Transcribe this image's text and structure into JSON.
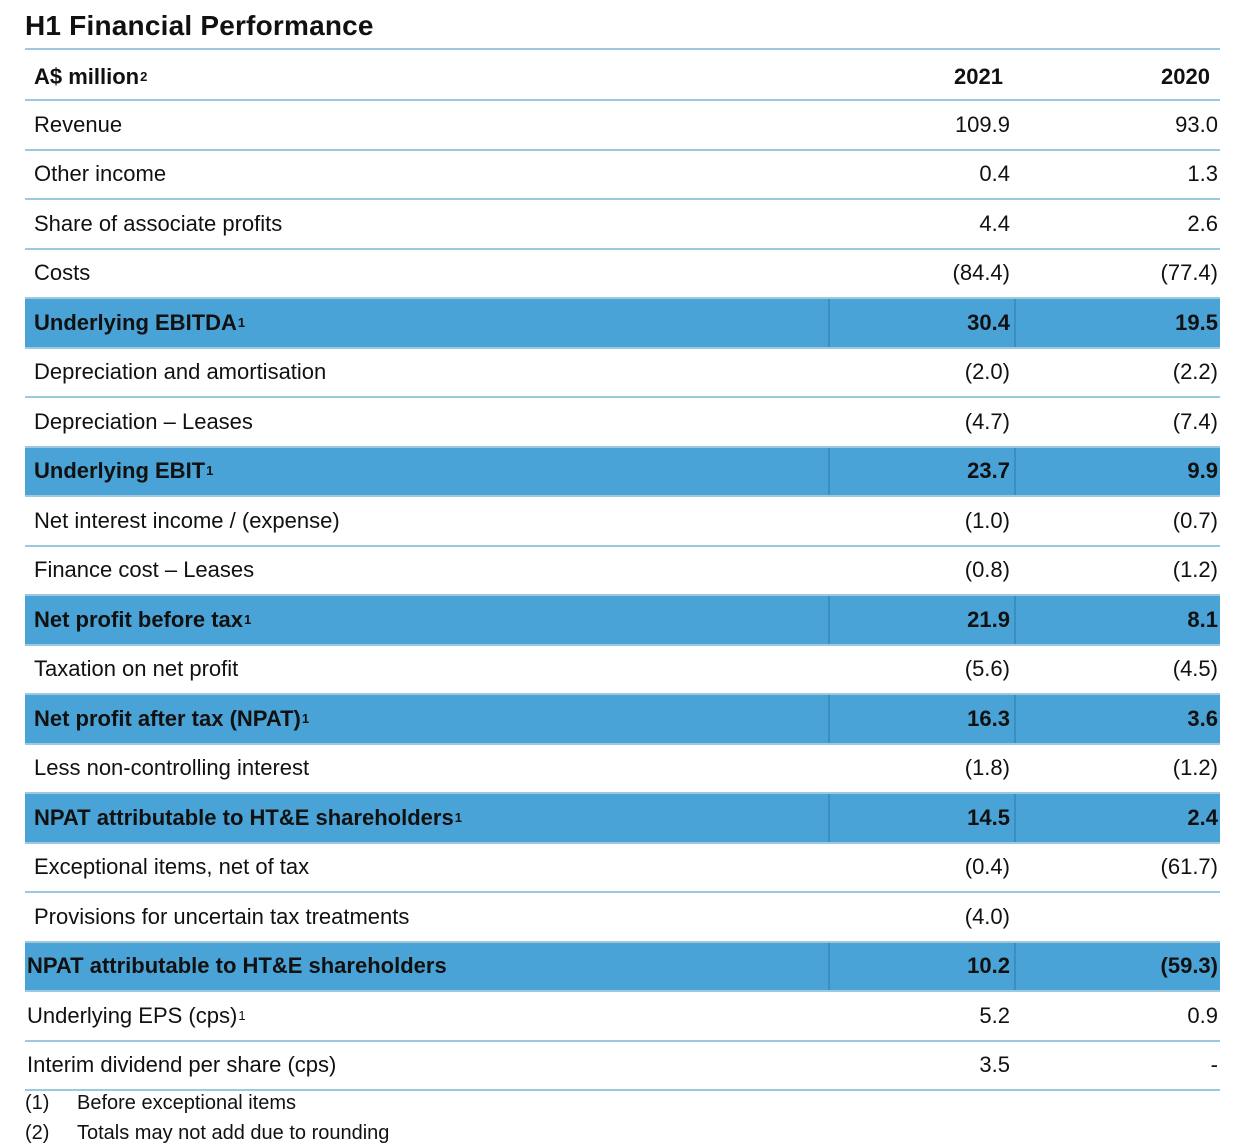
{
  "title": "H1 Financial Performance",
  "table": {
    "header": {
      "label": "A$ million",
      "label_sup": "2",
      "col_2021": "2021",
      "col_2020": "2020"
    },
    "rows": [
      {
        "label": "Revenue",
        "sup": "",
        "v2021": "109.9",
        "v2020": "93.0",
        "highlight": false
      },
      {
        "label": "Other income",
        "sup": "",
        "v2021": "0.4",
        "v2020": "1.3",
        "highlight": false
      },
      {
        "label": "Share of associate profits",
        "sup": "",
        "v2021": "4.4",
        "v2020": "2.6",
        "highlight": false
      },
      {
        "label": "Costs",
        "sup": "",
        "v2021": "(84.4)",
        "v2020": "(77.4)",
        "highlight": false
      },
      {
        "label": "Underlying EBITDA",
        "sup": "1",
        "v2021": "30.4",
        "v2020": "19.5",
        "highlight": true
      },
      {
        "label": "Depreciation and amortisation",
        "sup": "",
        "v2021": "(2.0)",
        "v2020": "(2.2)",
        "highlight": false
      },
      {
        "label": "Depreciation – Leases",
        "sup": "",
        "v2021": "(4.7)",
        "v2020": "(7.4)",
        "highlight": false
      },
      {
        "label": "Underlying EBIT",
        "sup": "1",
        "v2021": "23.7",
        "v2020": "9.9",
        "highlight": true
      },
      {
        "label": "Net interest income / (expense)",
        "sup": "",
        "v2021": "(1.0)",
        "v2020": "(0.7)",
        "highlight": false
      },
      {
        "label": "Finance cost – Leases",
        "sup": "",
        "v2021": "(0.8)",
        "v2020": "(1.2)",
        "highlight": false
      },
      {
        "label": "Net profit before tax",
        "sup": "1",
        "v2021": "21.9",
        "v2020": "8.1",
        "highlight": true
      },
      {
        "label": "Taxation on net profit",
        "sup": "",
        "v2021": "(5.6)",
        "v2020": "(4.5)",
        "highlight": false
      },
      {
        "label": "Net profit after tax (NPAT)",
        "sup": "1",
        "v2021": "16.3",
        "v2020": "3.6",
        "highlight": true
      },
      {
        "label": "Less non-controlling interest",
        "sup": "",
        "v2021": "(1.8)",
        "v2020": "(1.2)",
        "highlight": false
      },
      {
        "label": "NPAT attributable to HT&E shareholders",
        "sup": "1",
        "v2021": "14.5",
        "v2020": "2.4",
        "highlight": true
      },
      {
        "label": "Exceptional items, net of tax",
        "sup": "",
        "v2021": "(0.4)",
        "v2020": "(61.7)",
        "highlight": false
      },
      {
        "label": "Provisions for uncertain tax treatments",
        "sup": "",
        "v2021": "(4.0)",
        "v2020": "",
        "highlight": false
      },
      {
        "label": "NPAT attributable to HT&E shareholders",
        "sup": "",
        "v2021": "10.2",
        "v2020": "(59.3)",
        "highlight": true
      },
      {
        "label": "Underlying EPS (cps)",
        "sup": "1",
        "v2021": "5.2",
        "v2020": "0.9",
        "highlight": false
      },
      {
        "label": "Interim dividend per share (cps)",
        "sup": "",
        "v2021": "3.5",
        "v2020": "-",
        "highlight": false
      }
    ]
  },
  "footnotes": [
    {
      "num": "(1)",
      "text": "Before exceptional items"
    },
    {
      "num": "(2)",
      "text": "Totals may not add due to rounding"
    }
  ]
}
